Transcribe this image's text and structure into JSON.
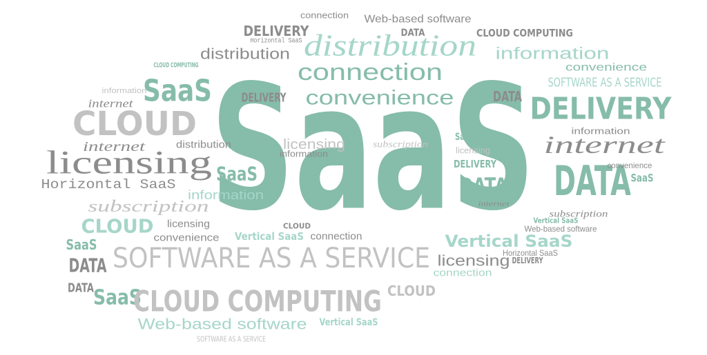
{
  "words": [
    "SaaS",
    "DELIVERY",
    "connection",
    "Web-based software",
    "distribution",
    "distribution",
    "DATA",
    "CLOUD COMPUTING",
    "information",
    "convenience",
    "connection",
    "SaaS",
    "DELIVERY",
    "convenience",
    "DATA",
    "DELIVERY",
    "SOFTWARE AS A SERVICE",
    "CLOUD",
    "internet",
    "internet",
    "information",
    "licensing",
    "internet",
    "distribution",
    "licensing",
    "subscription",
    "SaaS",
    "DELIVERY",
    "DATA",
    "DATA",
    "SaaS",
    "Horizontal SaaS",
    "subscription",
    "information",
    "CLOUD",
    "licensing",
    "convenience",
    "Vertical SaaS",
    "connection",
    "Vertical SaaS",
    "SaaS",
    "DATA",
    "SOFTWARE AS A SERVICE",
    "licensing",
    "DELIVERY",
    "DATA",
    "SaaS",
    "CLOUD COMPUTING",
    "CLOUD",
    "Web-based software",
    "Vertical SaaS",
    "SOFTWARE AS A SERVICE",
    "connection",
    "subscription",
    "Web-based software",
    "CLOUD COMPUTING",
    "information",
    "Horizontal SaaS",
    "Vertical SaaS",
    "CLOUD",
    "Horizontal SaaS",
    "convenience",
    "SaaS",
    "licensing",
    "internet",
    "information"
  ]
}
